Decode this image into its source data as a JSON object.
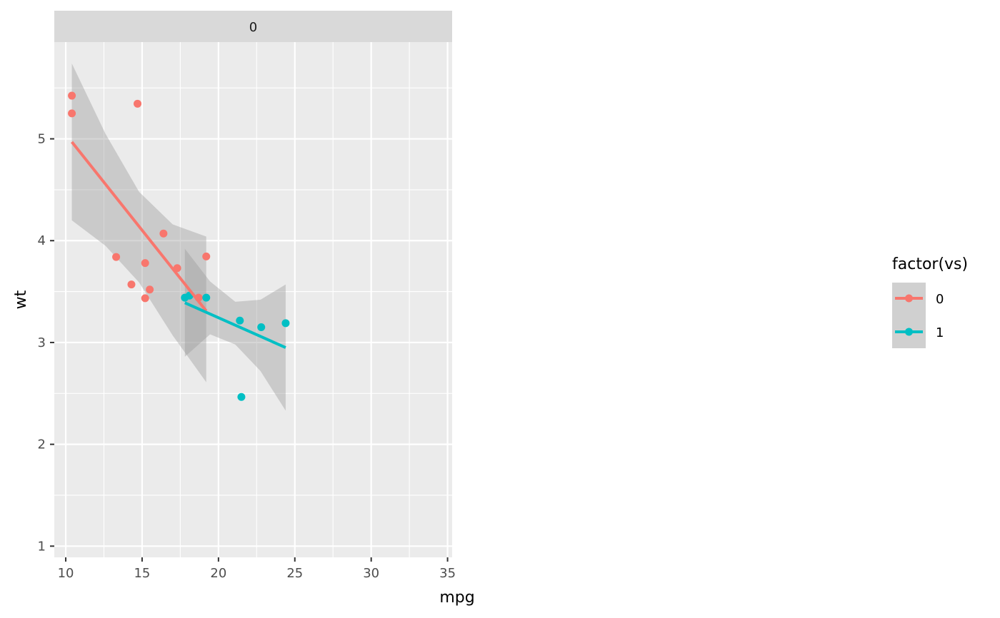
{
  "chart_data": {
    "type": "scatter",
    "facet_label": "0",
    "xlabel": "mpg",
    "ylabel": "wt",
    "xlim": [
      9.25,
      35.3
    ],
    "ylim": [
      0.89,
      5.95
    ],
    "x_ticks": [
      10,
      15,
      20,
      25,
      30,
      35
    ],
    "y_ticks": [
      1,
      2,
      3,
      4,
      5
    ],
    "grid": true,
    "legend": {
      "title": "factor(vs)",
      "position": "right",
      "entries": [
        {
          "label": "0",
          "color": "#F8766D"
        },
        {
          "label": "1",
          "color": "#00BFC4"
        }
      ]
    },
    "series": [
      {
        "group": "0",
        "color": "#F8766D",
        "points": [
          {
            "x": 10.4,
            "y": 5.424
          },
          {
            "x": 10.4,
            "y": 5.25
          },
          {
            "x": 14.7,
            "y": 5.345
          },
          {
            "x": 13.3,
            "y": 3.84
          },
          {
            "x": 14.3,
            "y": 3.57
          },
          {
            "x": 15.2,
            "y": 3.78
          },
          {
            "x": 15.2,
            "y": 3.435
          },
          {
            "x": 15.5,
            "y": 3.52
          },
          {
            "x": 16.4,
            "y": 4.07
          },
          {
            "x": 17.3,
            "y": 3.73
          },
          {
            "x": 19.2,
            "y": 3.845
          },
          {
            "x": 18.7,
            "y": 3.44
          }
        ],
        "fit": {
          "x0": 10.4,
          "y0": 4.97,
          "x1": 19.2,
          "y1": 3.31
        },
        "band": [
          {
            "x": 10.4,
            "lo": 4.2,
            "hi": 5.74
          },
          {
            "x": 12.6,
            "lo": 3.95,
            "hi": 5.05
          },
          {
            "x": 14.8,
            "lo": 3.59,
            "hi": 4.48
          },
          {
            "x": 17.0,
            "lo": 3.07,
            "hi": 4.16
          },
          {
            "x": 19.2,
            "lo": 2.61,
            "hi": 4.04
          }
        ]
      },
      {
        "group": "1",
        "color": "#00BFC4",
        "points": [
          {
            "x": 17.8,
            "y": 3.44
          },
          {
            "x": 18.1,
            "y": 3.46
          },
          {
            "x": 19.2,
            "y": 3.44
          },
          {
            "x": 21.4,
            "y": 3.215
          },
          {
            "x": 22.8,
            "y": 3.15
          },
          {
            "x": 24.4,
            "y": 3.19
          },
          {
            "x": 21.5,
            "y": 2.465
          }
        ],
        "fit": {
          "x0": 17.8,
          "y0": 3.39,
          "x1": 24.4,
          "y1": 2.95
        },
        "band": [
          {
            "x": 17.8,
            "lo": 2.86,
            "hi": 3.92
          },
          {
            "x": 19.45,
            "lo": 3.08,
            "hi": 3.6
          },
          {
            "x": 21.1,
            "lo": 2.98,
            "hi": 3.4
          },
          {
            "x": 22.75,
            "lo": 2.72,
            "hi": 3.42
          },
          {
            "x": 24.4,
            "lo": 2.33,
            "hi": 3.57
          }
        ]
      }
    ]
  }
}
